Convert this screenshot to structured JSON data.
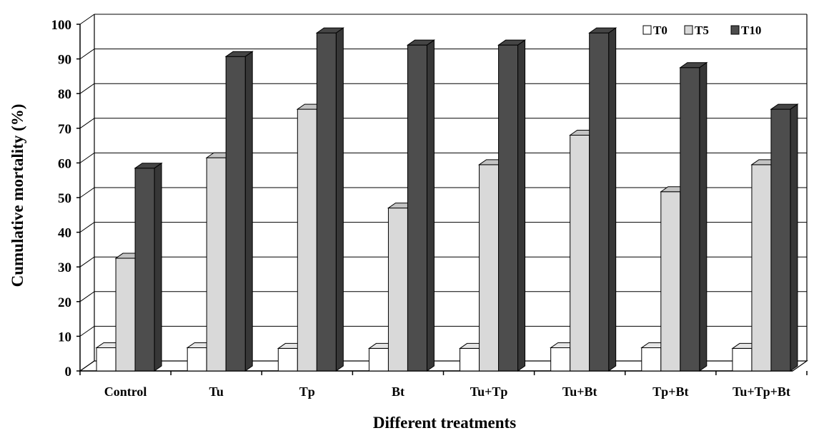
{
  "chart_data": {
    "type": "bar",
    "title": "",
    "xlabel": "Different treatments",
    "ylabel": "Cumulative mortality (%)",
    "ylim": [
      0,
      100
    ],
    "yticks": [
      "0",
      "10",
      "20",
      "30",
      "40",
      "50",
      "60",
      "70",
      "80",
      "90",
      "100"
    ],
    "grid": true,
    "legend_position": "top-right",
    "categories": [
      "Control",
      "Tu",
      "Tp",
      "Bt",
      "Tu+Tp",
      "Tu+Bt",
      "Tp+Bt",
      "Tu+Tp+Bt"
    ],
    "series": [
      {
        "name": "T0",
        "color": "#ffffff",
        "values": [
          6.7,
          6.7,
          6.5,
          6.5,
          6.5,
          6.7,
          6.7,
          6.5
        ]
      },
      {
        "name": "T5",
        "color": "#d9d9d9",
        "values": [
          32.5,
          61.5,
          75.5,
          47.0,
          59.5,
          68.0,
          51.7,
          59.5
        ]
      },
      {
        "name": "T10",
        "color": "#4d4d4d",
        "values": [
          58.5,
          90.7,
          97.5,
          94.0,
          94.0,
          97.5,
          87.5,
          75.5
        ]
      }
    ]
  }
}
